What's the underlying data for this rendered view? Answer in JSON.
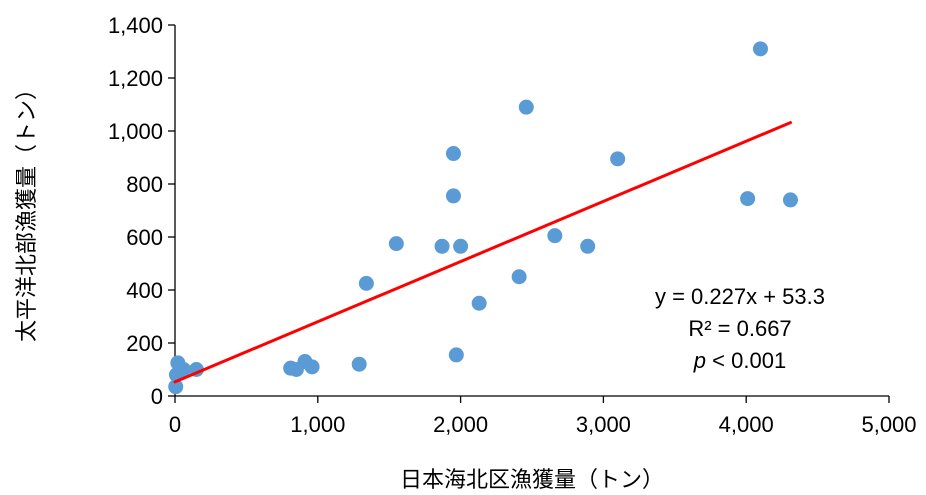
{
  "chart_data": {
    "type": "scatter",
    "title": "",
    "xlabel": "日本海北区漁獲量（トン）",
    "ylabel": "太平洋北部漁獲量（トン）",
    "xlim": [
      0,
      5000
    ],
    "ylim": [
      0,
      1400
    ],
    "x_ticks": [
      0,
      1000,
      2000,
      3000,
      4000,
      5000
    ],
    "y_ticks": [
      0,
      200,
      400,
      600,
      800,
      1000,
      1200,
      1400
    ],
    "x_tick_labels": [
      "0",
      "1,000",
      "2,000",
      "3,000",
      "4,000",
      "5,000"
    ],
    "y_tick_labels": [
      "0",
      "200",
      "400",
      "600",
      "800",
      "1,000",
      "1,200",
      "1,400"
    ],
    "grid": false,
    "points": [
      {
        "x": 5,
        "y": 35
      },
      {
        "x": 10,
        "y": 80
      },
      {
        "x": 20,
        "y": 125
      },
      {
        "x": 40,
        "y": 90
      },
      {
        "x": 60,
        "y": 100
      },
      {
        "x": 150,
        "y": 100
      },
      {
        "x": 810,
        "y": 105
      },
      {
        "x": 850,
        "y": 100
      },
      {
        "x": 910,
        "y": 130
      },
      {
        "x": 960,
        "y": 110
      },
      {
        "x": 1290,
        "y": 120
      },
      {
        "x": 1340,
        "y": 425
      },
      {
        "x": 1550,
        "y": 575
      },
      {
        "x": 1870,
        "y": 565
      },
      {
        "x": 1950,
        "y": 915
      },
      {
        "x": 1950,
        "y": 755
      },
      {
        "x": 1970,
        "y": 155
      },
      {
        "x": 2000,
        "y": 565
      },
      {
        "x": 2130,
        "y": 350
      },
      {
        "x": 2410,
        "y": 450
      },
      {
        "x": 2460,
        "y": 1090
      },
      {
        "x": 2660,
        "y": 605
      },
      {
        "x": 2890,
        "y": 565
      },
      {
        "x": 3100,
        "y": 895
      },
      {
        "x": 4010,
        "y": 745
      },
      {
        "x": 4100,
        "y": 1310
      },
      {
        "x": 4310,
        "y": 740
      }
    ],
    "trendline": {
      "slope": 0.227,
      "intercept": 53.3,
      "x_start": 0,
      "x_end": 4310
    },
    "annotation": {
      "equation": "y = 0.227x + 53.3",
      "r2": "R² = 0.667",
      "p_symbol": "p",
      "p_rest": " < 0.001"
    },
    "colors": {
      "points": "#5b9bd5",
      "trendline": "#ff0000",
      "axis": "#000000"
    }
  }
}
